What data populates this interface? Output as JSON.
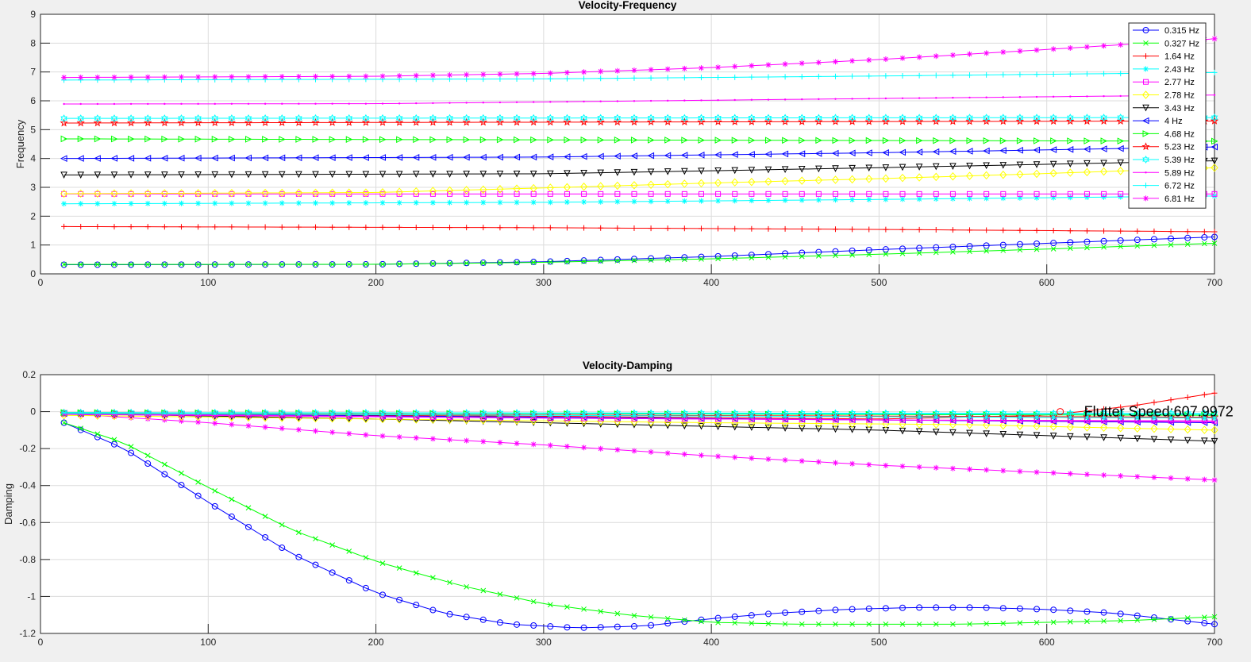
{
  "chart_data": [
    {
      "type": "line",
      "title": "Velocity-Frequency",
      "xlabel": "",
      "ylabel": "Frequency",
      "xlim": [
        0,
        700
      ],
      "ylim": [
        0,
        9
      ],
      "xticks": [
        "0",
        "100",
        "200",
        "300",
        "400",
        "500",
        "600",
        "700"
      ],
      "yticks": [
        "0",
        "1",
        "2",
        "3",
        "4",
        "5",
        "6",
        "7",
        "8",
        "9"
      ],
      "grid": true,
      "legend_position": "top-right",
      "velocity": {
        "start": 14,
        "end": 700,
        "step": 10
      },
      "series": [
        {
          "name": "0.315 Hz",
          "color": "#0000ff",
          "marker": "circle",
          "points": [
            [
              14,
              0.315
            ],
            [
              200,
              0.33
            ],
            [
              300,
              0.42
            ],
            [
              400,
              0.6
            ],
            [
              500,
              0.84
            ],
            [
              600,
              1.06
            ],
            [
              700,
              1.28
            ]
          ]
        },
        {
          "name": "0.327 Hz",
          "color": "#00ff00",
          "marker": "x",
          "points": [
            [
              14,
              0.327
            ],
            [
              200,
              0.33
            ],
            [
              300,
              0.4
            ],
            [
              400,
              0.52
            ],
            [
              500,
              0.68
            ],
            [
              600,
              0.86
            ],
            [
              700,
              1.06
            ]
          ]
        },
        {
          "name": "1.64 Hz",
          "color": "#ff0000",
          "marker": "plus",
          "points": [
            [
              14,
              1.64
            ],
            [
              300,
              1.6
            ],
            [
              500,
              1.54
            ],
            [
              700,
              1.46
            ]
          ]
        },
        {
          "name": "2.43 Hz",
          "color": "#00ffff",
          "marker": "asterisk",
          "points": [
            [
              14,
              2.43
            ],
            [
              300,
              2.48
            ],
            [
              500,
              2.58
            ],
            [
              700,
              2.7
            ]
          ]
        },
        {
          "name": "2.77 Hz",
          "color": "#ff00ff",
          "marker": "square",
          "points": [
            [
              14,
              2.77
            ],
            [
              700,
              2.77
            ]
          ]
        },
        {
          "name": "2.78 Hz",
          "color": "#ffff00",
          "marker": "diamond",
          "points": [
            [
              14,
              2.78
            ],
            [
              200,
              2.82
            ],
            [
              300,
              2.98
            ],
            [
              400,
              3.15
            ],
            [
              500,
              3.3
            ],
            [
              600,
              3.48
            ],
            [
              700,
              3.68
            ]
          ]
        },
        {
          "name": "3.43 Hz",
          "color": "#000000",
          "marker": "tri-down",
          "points": [
            [
              14,
              3.43
            ],
            [
              300,
              3.47
            ],
            [
              500,
              3.68
            ],
            [
              700,
              3.92
            ]
          ]
        },
        {
          "name": "4 Hz",
          "color": "#0000ff",
          "marker": "tri-left",
          "points": [
            [
              14,
              4.0
            ],
            [
              300,
              4.05
            ],
            [
              500,
              4.2
            ],
            [
              700,
              4.4
            ]
          ]
        },
        {
          "name": "4.68 Hz",
          "color": "#00ff00",
          "marker": "tri-right",
          "points": [
            [
              14,
              4.68
            ],
            [
              700,
              4.6
            ]
          ]
        },
        {
          "name": "5.23 Hz",
          "color": "#ff0000",
          "marker": "star",
          "points": [
            [
              14,
              5.23
            ],
            [
              700,
              5.3
            ]
          ]
        },
        {
          "name": "5.39 Hz",
          "color": "#00ffff",
          "marker": "hexagram",
          "points": [
            [
              14,
              5.39
            ],
            [
              700,
              5.42
            ]
          ]
        },
        {
          "name": "5.89 Hz",
          "color": "#ff00ff",
          "marker": "dot",
          "points": [
            [
              14,
              5.89
            ],
            [
              200,
              5.9
            ],
            [
              400,
              6.02
            ],
            [
              700,
              6.2
            ]
          ]
        },
        {
          "name": "6.72 Hz",
          "color": "#00ffff",
          "marker": "plus",
          "points": [
            [
              14,
              6.72
            ],
            [
              300,
              6.76
            ],
            [
              500,
              6.86
            ],
            [
              700,
              6.98
            ]
          ]
        },
        {
          "name": "6.81 Hz",
          "color": "#ff00ff",
          "marker": "asterisk",
          "points": [
            [
              14,
              6.81
            ],
            [
              200,
              6.85
            ],
            [
              300,
              6.95
            ],
            [
              400,
              7.15
            ],
            [
              500,
              7.43
            ],
            [
              600,
              7.78
            ],
            [
              700,
              8.15
            ]
          ]
        }
      ]
    },
    {
      "type": "line",
      "title": "Velocity-Damping",
      "xlabel": "",
      "ylabel": "Damping",
      "xlim": [
        0,
        700
      ],
      "ylim": [
        -1.2,
        0.2
      ],
      "xticks": [
        "0",
        "100",
        "200",
        "300",
        "400",
        "500",
        "600",
        "700"
      ],
      "yticks": [
        "-1.2",
        "-1",
        "-0.8",
        "-0.6",
        "-0.4",
        "-0.2",
        "0",
        "0.2"
      ],
      "grid": true,
      "annotation": {
        "text": "Flutter Speed:607.9972",
        "x": 607.9972,
        "y": 0
      },
      "series": [
        {
          "color": "#0000ff",
          "marker": "circle",
          "points": [
            [
              14,
              -0.06
            ],
            [
              50,
              -0.2
            ],
            [
              100,
              -0.49
            ],
            [
              150,
              -0.77
            ],
            [
              200,
              -0.98
            ],
            [
              240,
              -1.09
            ],
            [
              280,
              -1.15
            ],
            [
              320,
              -1.17
            ],
            [
              360,
              -1.16
            ],
            [
              400,
              -1.12
            ],
            [
              440,
              -1.09
            ],
            [
              480,
              -1.07
            ],
            [
              520,
              -1.06
            ],
            [
              560,
              -1.06
            ],
            [
              600,
              -1.07
            ],
            [
              640,
              -1.09
            ],
            [
              670,
              -1.12
            ],
            [
              700,
              -1.15
            ]
          ]
        },
        {
          "color": "#00ff00",
          "marker": "x",
          "points": [
            [
              14,
              -0.06
            ],
            [
              50,
              -0.17
            ],
            [
              100,
              -0.41
            ],
            [
              150,
              -0.64
            ],
            [
              200,
              -0.81
            ],
            [
              250,
              -0.94
            ],
            [
              300,
              -1.04
            ],
            [
              350,
              -1.1
            ],
            [
              400,
              -1.14
            ],
            [
              450,
              -1.15
            ],
            [
              500,
              -1.15
            ],
            [
              550,
              -1.15
            ],
            [
              600,
              -1.14
            ],
            [
              650,
              -1.13
            ],
            [
              700,
              -1.11
            ]
          ]
        },
        {
          "color": "#ff00ff",
          "marker": "asterisk",
          "points": [
            [
              14,
              -0.01
            ],
            [
              100,
              -0.06
            ],
            [
              200,
              -0.13
            ],
            [
              300,
              -0.18
            ],
            [
              400,
              -0.24
            ],
            [
              500,
              -0.29
            ],
            [
              600,
              -0.33
            ],
            [
              700,
              -0.37
            ]
          ]
        },
        {
          "color": "#000000",
          "marker": "tri-down",
          "points": [
            [
              14,
              -0.01
            ],
            [
              200,
              -0.04
            ],
            [
              400,
              -0.08
            ],
            [
              500,
              -0.1
            ],
            [
              600,
              -0.13
            ],
            [
              700,
              -0.16
            ]
          ]
        },
        {
          "color": "#ffff00",
          "marker": "diamond",
          "points": [
            [
              14,
              -0.02
            ],
            [
              200,
              -0.04
            ],
            [
              400,
              -0.06
            ],
            [
              550,
              -0.07
            ],
            [
              700,
              -0.1
            ]
          ]
        },
        {
          "color": "#ff0000",
          "marker": "plus",
          "points": [
            [
              14,
              -0.01
            ],
            [
              300,
              -0.025
            ],
            [
              500,
              -0.04
            ],
            [
              600,
              -0.02
            ],
            [
              650,
              0.03
            ],
            [
              700,
              0.1
            ]
          ]
        },
        {
          "color": "#0000ff",
          "marker": "tri-left",
          "points": [
            [
              14,
              -0.01
            ],
            [
              300,
              -0.03
            ],
            [
              500,
              -0.045
            ],
            [
              700,
              -0.06
            ]
          ]
        },
        {
          "color": "#ff00ff",
          "marker": "square",
          "points": [
            [
              14,
              -0.01
            ],
            [
              300,
              -0.035
            ],
            [
              500,
              -0.045
            ],
            [
              700,
              -0.05
            ]
          ]
        },
        {
          "color": "#00ffff",
          "marker": "hexagram",
          "points": [
            [
              14,
              -0.005
            ],
            [
              700,
              -0.01
            ]
          ]
        },
        {
          "color": "#00ff00",
          "marker": "tri-right",
          "points": [
            [
              14,
              -0.005
            ],
            [
              700,
              -0.02
            ]
          ]
        },
        {
          "color": "#ff0000",
          "marker": "star",
          "points": [
            [
              14,
              -0.01
            ],
            [
              700,
              -0.03
            ]
          ]
        },
        {
          "color": "#00ffff",
          "marker": "asterisk",
          "points": [
            [
              14,
              -0.01
            ],
            [
              300,
              -0.02
            ],
            [
              700,
              -0.035
            ]
          ]
        },
        {
          "color": "#00ffff",
          "marker": "plus",
          "points": [
            [
              14,
              -0.005
            ],
            [
              700,
              -0.015
            ]
          ]
        },
        {
          "color": "#ff00ff",
          "marker": "dot",
          "points": [
            [
              14,
              -0.015
            ],
            [
              300,
              -0.035
            ],
            [
              700,
              -0.055
            ]
          ]
        }
      ]
    }
  ]
}
